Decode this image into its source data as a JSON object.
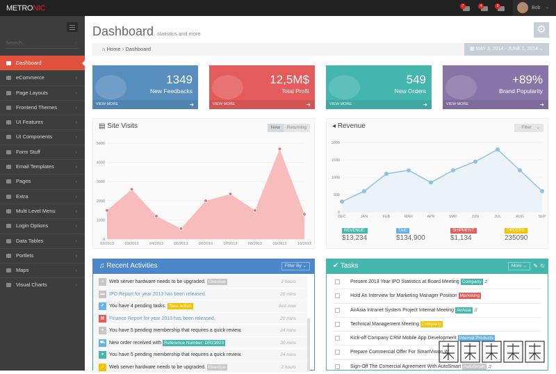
{
  "topbar": {
    "logo_a": "METRO",
    "logo_b": "NIC",
    "notifications": [
      {
        "count": "7",
        "icon": "warning-icon"
      },
      {
        "count": "4",
        "icon": "envelope-icon"
      },
      {
        "count": "3",
        "icon": "calendar-icon"
      }
    ],
    "user": "Bob"
  },
  "sidebar": {
    "search_placeholder": "Search...",
    "items": [
      {
        "label": "Dashboard",
        "active": true
      },
      {
        "label": "eCommerce"
      },
      {
        "label": "Page Layouts"
      },
      {
        "label": "Frontend Themes"
      },
      {
        "label": "UI Features"
      },
      {
        "label": "UI Components"
      },
      {
        "label": "Form Stuff"
      },
      {
        "label": "Email Templates"
      },
      {
        "label": "Pages"
      },
      {
        "label": "Extra"
      },
      {
        "label": "Multi Level Menu"
      },
      {
        "label": "Login Options"
      },
      {
        "label": "Data Tables"
      },
      {
        "label": "Portlets"
      },
      {
        "label": "Maps"
      },
      {
        "label": "Visual Charts"
      }
    ]
  },
  "page": {
    "title": "Dashboard",
    "subtitle": "statistics and more",
    "breadcrumb": [
      "Home",
      "Dashboard"
    ],
    "date_range": "MAY 3, 2014 - JUNE 1, 2014"
  },
  "cards": [
    {
      "value": "1349",
      "label": "New Feedbacks",
      "color": "#578ebe",
      "more": "VIEW MORE"
    },
    {
      "value": "12,5M$",
      "label": "Total Profit",
      "color": "#e35b5a",
      "more": "VIEW MORE"
    },
    {
      "value": "549",
      "label": "New Orders",
      "color": "#44b6ae",
      "more": "VIEW MORE"
    },
    {
      "value": "+89%",
      "label": "Brand Popularity",
      "color": "#8775a7",
      "more": "VIEW MORE"
    }
  ],
  "site_visits": {
    "title": "Site Visits",
    "tabs": [
      "New",
      "Returning"
    ]
  },
  "revenue": {
    "title": "Revenue",
    "filter": "Filter",
    "stats": [
      {
        "label": "REVENUE:",
        "value": "$13,234",
        "color": "#44b6ae"
      },
      {
        "label": "TAX:",
        "value": "$134,900",
        "color": "#67b3e8"
      },
      {
        "label": "SHIPMENT:",
        "value": "$1,134",
        "color": "#e35b5a"
      },
      {
        "label": "ORDERS:",
        "value": "235090",
        "color": "#f3c200"
      }
    ]
  },
  "chart_data": [
    {
      "type": "area",
      "categories": [
        "02/2013",
        "03/2013",
        "04/2013",
        "05/2013",
        "06/2013",
        "07/2013",
        "08/2013",
        "09/2013",
        "10/2013"
      ],
      "values": [
        1500,
        2600,
        1200,
        550,
        2000,
        2350,
        1500,
        4700,
        1300
      ],
      "ylim": [
        0,
        5000
      ],
      "yticks": [
        "0",
        "1000",
        "2000",
        "3000",
        "4000",
        "5000"
      ],
      "color": "#f8bcbc",
      "grid": true
    },
    {
      "type": "line",
      "categories": [
        "DEC",
        "JAN",
        "FEB",
        "MAR",
        "APR",
        "MAY",
        "JUN",
        "JUL",
        "AUG",
        "SEP"
      ],
      "values": [
        300,
        600,
        1100,
        1200,
        850,
        1200,
        1450,
        1800,
        1200,
        600
      ],
      "ylim": [
        0,
        2000
      ],
      "yticks": [
        "0",
        "500",
        "1000",
        "1500",
        "2000"
      ],
      "color": "#8fc1e0",
      "grid": true
    }
  ],
  "activities": {
    "title": "Recent Activities",
    "filter": "Filter By",
    "items": [
      {
        "text": "Web server hardware needs to be upgraded.",
        "tag": "Overdue",
        "tagColor": "#c6c6c6",
        "icon": "bell-icon",
        "iconColor": "#c6c6c6",
        "time": "2 hours"
      },
      {
        "text": "IPO Report for year 2013 has been released.",
        "link": true,
        "icon": "briefcase-icon",
        "iconColor": "#c6c6c6",
        "time": "20 mins"
      },
      {
        "text": "You have 4 pending tasks.",
        "tag": "Take action",
        "tagColor": "#f3c200",
        "icon": "check-icon",
        "iconColor": "#67b3e8",
        "time": "Just now"
      },
      {
        "text": "Finance Report for year 2013 has been released.",
        "link": true,
        "icon": "chart-icon",
        "iconColor": "#e35b5a",
        "time": "20 mins"
      },
      {
        "text": "You have 5 pending membership that requires a quick review.",
        "icon": "user-icon",
        "iconColor": "#c6c6c6",
        "time": "24 mins"
      },
      {
        "text": "New order received with",
        "tag": "Reference Number: DR23923",
        "tagColor": "#44b6ae",
        "icon": "cart-icon",
        "iconColor": "#67b3e8",
        "time": "30 mins"
      },
      {
        "text": "You have 5 pending membership that requires a quick review.",
        "icon": "user-icon",
        "iconColor": "#44b6ae",
        "time": "24 mins"
      },
      {
        "text": "Web server hardware needs to be upgraded.",
        "tag": "Overdue",
        "tagColor": "#c6c6c6",
        "icon": "bell-icon",
        "iconColor": "#f3c200",
        "time": "2 hours"
      }
    ]
  },
  "tasks": {
    "title": "Tasks",
    "more": "More",
    "items": [
      {
        "text": "Present 2013 Year IPO Statistics at Board Meeting",
        "tag": "Company",
        "tagColor": "#44b6ae",
        "bell": true
      },
      {
        "text": "Hold An Interview for Marketing Manager Position",
        "tag": "Marketing",
        "tagColor": "#e35b5a"
      },
      {
        "text": "AirAsia Intranet System Project Internal Meeting",
        "tag": "AirAsia",
        "tagColor": "#44b6ae",
        "bell": true
      },
      {
        "text": "Technical Management Meeting",
        "tag": "Company",
        "tagColor": "#f3c200"
      },
      {
        "text": "Kick-off Company CRM Mobile App Development",
        "tag": "Internal Products",
        "tagColor": "#67b3e8"
      },
      {
        "text": "Prepare Commercial Offer For SmartVision W"
      },
      {
        "text": "Sign-Off The Comercial Agreement With AutoSmart",
        "tag": "AutoSmart",
        "tagColor": "#c6c6c6",
        "bell": true
      }
    ]
  },
  "watermark": "银版网模板"
}
